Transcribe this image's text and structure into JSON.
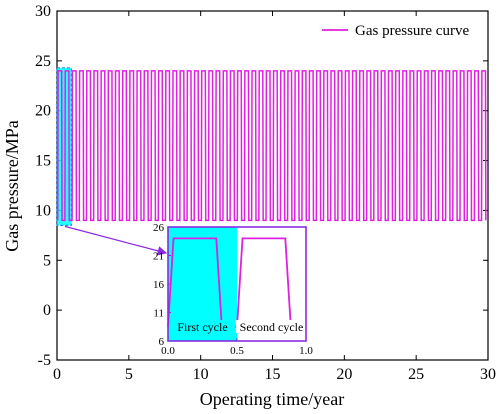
{
  "chart_data": {
    "type": "line",
    "title": "",
    "xlabel": "Operating time/year",
    "ylabel": "Gas pressure/MPa",
    "xlim": [
      0,
      30
    ],
    "ylim": [
      -5,
      30
    ],
    "xticks": [
      0,
      5,
      10,
      15,
      20,
      25,
      30
    ],
    "yticks": [
      -5,
      0,
      5,
      10,
      15,
      20,
      25,
      30
    ],
    "grid": false,
    "legend": {
      "position": "top-right"
    },
    "series": [
      {
        "name": "Gas pressure curve",
        "color": "#e020e0",
        "pattern": {
          "period_years": 0.5,
          "start_year": 0.05,
          "end_year": 30,
          "min_pressure": 9,
          "max_pressure": 24,
          "cycle_shape_fraction": [
            [
              0,
              9
            ],
            [
              0.05,
              24
            ],
            [
              0.55,
              24
            ],
            [
              0.6,
              9
            ],
            [
              1.0,
              9
            ]
          ]
        }
      }
    ],
    "highlight_box": {
      "x_range": [
        0,
        1
      ],
      "y_range": [
        8.5,
        24.3
      ],
      "color": "#1e90ff",
      "fill": "#00ffff"
    },
    "inset": {
      "xlim": [
        0,
        1
      ],
      "ylim": [
        6,
        26
      ],
      "xticks": [
        0.0,
        0.5,
        1.0
      ],
      "yticks": [
        6,
        11,
        16,
        21,
        26
      ],
      "xtick_labels": [
        "0.0",
        "0.5",
        "1.0"
      ],
      "ytick_labels": [
        "6",
        "11",
        "16",
        "21",
        "26"
      ],
      "frame_color": "#8a2be2",
      "shade_x_range": [
        0,
        0.5
      ],
      "shade_color": "#00ffff",
      "line_points": [
        [
          0,
          8.5
        ],
        [
          0.04,
          24
        ],
        [
          0.35,
          24
        ],
        [
          0.39,
          8.5
        ],
        [
          0.5,
          8.5
        ],
        [
          0.54,
          24
        ],
        [
          0.85,
          24
        ],
        [
          0.89,
          8.5
        ],
        [
          1.0,
          8.5
        ]
      ],
      "annotations": [
        {
          "text": "First cycle",
          "x_range": [
            0,
            0.5
          ]
        },
        {
          "text": "Second cycle",
          "x_range": [
            0.5,
            1.0
          ]
        }
      ]
    },
    "connector_color": "#8a2be2"
  }
}
